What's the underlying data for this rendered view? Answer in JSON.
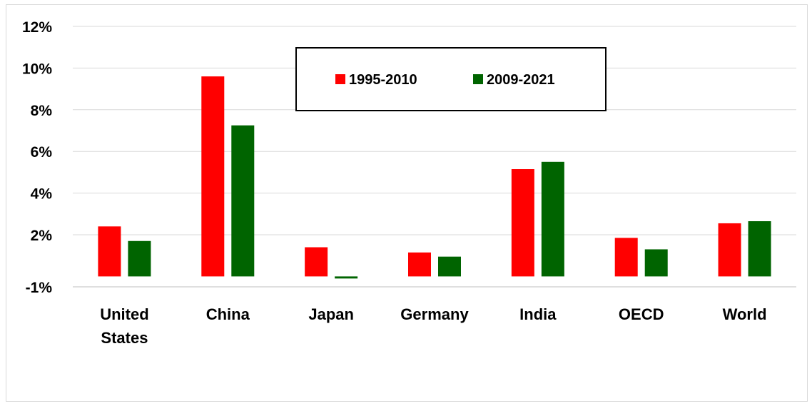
{
  "chart_data": {
    "type": "bar",
    "title": "",
    "xlabel": "",
    "ylabel": "",
    "categories": [
      "United States",
      "China",
      "Japan",
      "Germany",
      "India",
      "OECD",
      "World"
    ],
    "category_lines": [
      [
        "United",
        "States"
      ],
      [
        "China"
      ],
      [
        "Japan"
      ],
      [
        "Germany"
      ],
      [
        "India"
      ],
      [
        "OECD"
      ],
      [
        "World"
      ]
    ],
    "series": [
      {
        "name": "1995-2010",
        "color": "#ff0000",
        "values": [
          2.4,
          9.6,
          1.4,
          1.15,
          5.15,
          1.85,
          2.55
        ]
      },
      {
        "name": "2009-2021",
        "color": "#006400",
        "values": [
          1.7,
          7.25,
          -0.1,
          0.95,
          5.5,
          1.3,
          2.65
        ]
      }
    ],
    "y_ticks": [
      {
        "value": -0.5,
        "label": "-1%"
      },
      {
        "value": 2,
        "label": "2%"
      },
      {
        "value": 4,
        "label": "4%"
      },
      {
        "value": 6,
        "label": "6%"
      },
      {
        "value": 8,
        "label": "8%"
      },
      {
        "value": 10,
        "label": "10%"
      },
      {
        "value": 12,
        "label": "12%"
      }
    ],
    "ylim": [
      -0.5,
      12
    ],
    "grid": true,
    "legend_position": "top-center"
  }
}
